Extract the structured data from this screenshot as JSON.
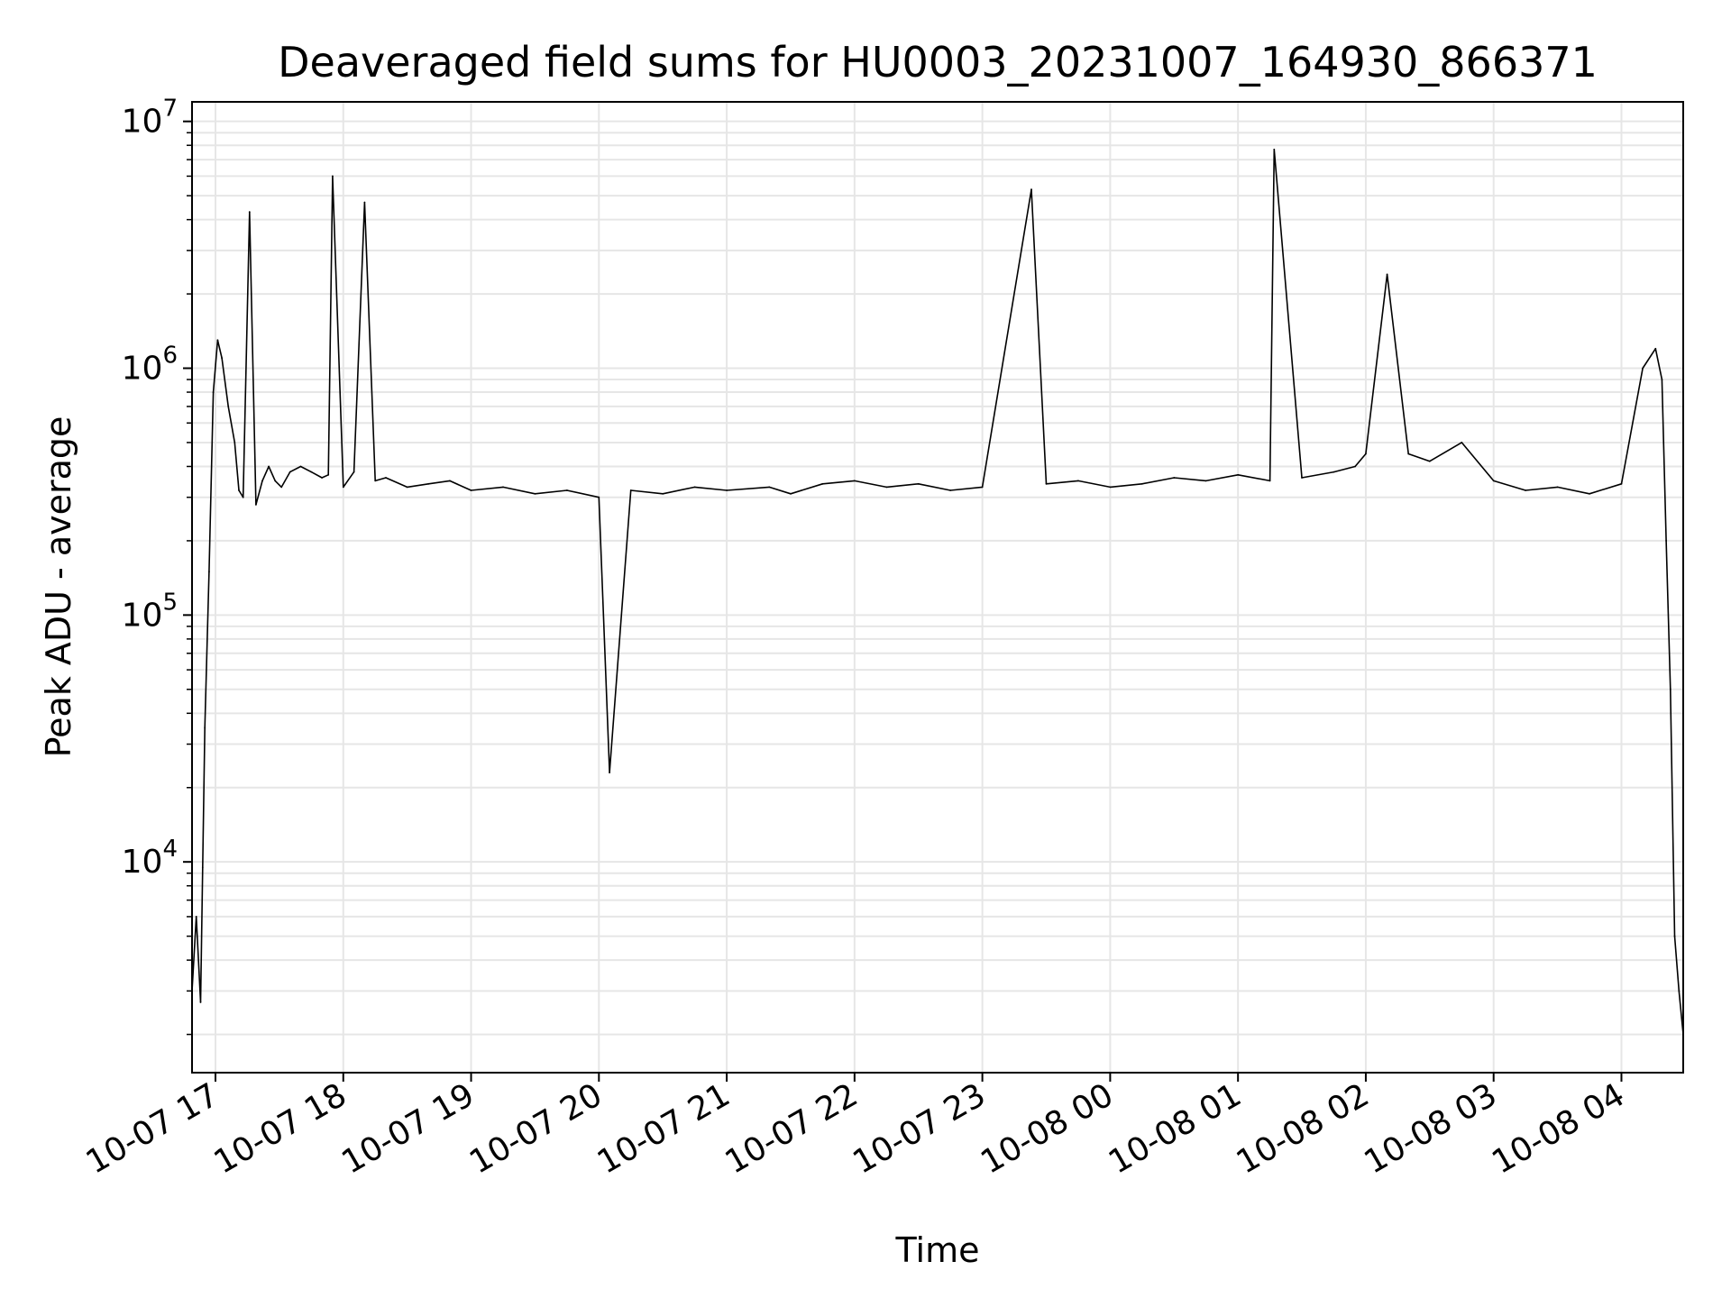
{
  "chart_data": {
    "type": "line",
    "title": "Deaveraged field sums for HU0003_20231007_164930_866371",
    "xlabel": "Time",
    "ylabel": "Peak ADU - average",
    "yscale": "log",
    "ylim": [
      1400,
      12000000
    ],
    "xlim": [
      "2023-10-07 16:49",
      "2023-10-08 04:29"
    ],
    "grid": "on (major and minor)",
    "line_color": "#000000",
    "x_ticks": [
      {
        "label": "10-07 17",
        "value": "2023-10-07 17:00"
      },
      {
        "label": "10-07 18",
        "value": "2023-10-07 18:00"
      },
      {
        "label": "10-07 19",
        "value": "2023-10-07 19:00"
      },
      {
        "label": "10-07 20",
        "value": "2023-10-07 20:00"
      },
      {
        "label": "10-07 21",
        "value": "2023-10-07 21:00"
      },
      {
        "label": "10-07 22",
        "value": "2023-10-07 22:00"
      },
      {
        "label": "10-07 23",
        "value": "2023-10-07 23:00"
      },
      {
        "label": "10-08 00",
        "value": "2023-10-08 00:00"
      },
      {
        "label": "10-08 01",
        "value": "2023-10-08 01:00"
      },
      {
        "label": "10-08 02",
        "value": "2023-10-08 02:00"
      },
      {
        "label": "10-08 03",
        "value": "2023-10-08 03:00"
      },
      {
        "label": "10-08 04",
        "value": "2023-10-08 04:00"
      }
    ],
    "y_ticks": [
      {
        "base": "10",
        "exp": "4",
        "value": 10000
      },
      {
        "base": "10",
        "exp": "5",
        "value": 100000
      },
      {
        "base": "10",
        "exp": "6",
        "value": 1000000
      },
      {
        "base": "10",
        "exp": "7",
        "value": 10000000
      }
    ],
    "series": [
      {
        "x": [
          "2023-10-07 16:49",
          "2023-10-07 16:51",
          "2023-10-07 16:53",
          "2023-10-07 16:54",
          "2023-10-07 16:55",
          "2023-10-07 16:57",
          "2023-10-07 16:59",
          "2023-10-07 17:01",
          "2023-10-07 17:03",
          "2023-10-07 17:06",
          "2023-10-07 17:09",
          "2023-10-07 17:11",
          "2023-10-07 17:13",
          "2023-10-07 17:16",
          "2023-10-07 17:19",
          "2023-10-07 17:22",
          "2023-10-07 17:25",
          "2023-10-07 17:28",
          "2023-10-07 17:31",
          "2023-10-07 17:35",
          "2023-10-07 17:40",
          "2023-10-07 17:45",
          "2023-10-07 17:50",
          "2023-10-07 17:53",
          "2023-10-07 17:55",
          "2023-10-07 18:00",
          "2023-10-07 18:05",
          "2023-10-07 18:10",
          "2023-10-07 18:15",
          "2023-10-07 18:20",
          "2023-10-07 18:30",
          "2023-10-07 18:40",
          "2023-10-07 18:50",
          "2023-10-07 19:00",
          "2023-10-07 19:15",
          "2023-10-07 19:30",
          "2023-10-07 19:45",
          "2023-10-07 20:00",
          "2023-10-07 20:05",
          "2023-10-07 20:15",
          "2023-10-07 20:30",
          "2023-10-07 20:45",
          "2023-10-07 21:00",
          "2023-10-07 21:20",
          "2023-10-07 21:30",
          "2023-10-07 21:45",
          "2023-10-07 22:00",
          "2023-10-07 22:15",
          "2023-10-07 22:30",
          "2023-10-07 22:45",
          "2023-10-07 23:00",
          "2023-10-07 23:23",
          "2023-10-07 23:30",
          "2023-10-07 23:45",
          "2023-10-08 00:00",
          "2023-10-08 00:15",
          "2023-10-08 00:30",
          "2023-10-08 00:45",
          "2023-10-08 01:00",
          "2023-10-08 01:15",
          "2023-10-08 01:17",
          "2023-10-08 01:30",
          "2023-10-08 01:45",
          "2023-10-08 01:55",
          "2023-10-08 02:00",
          "2023-10-08 02:10",
          "2023-10-08 02:20",
          "2023-10-08 02:30",
          "2023-10-08 02:45",
          "2023-10-08 03:00",
          "2023-10-08 03:15",
          "2023-10-08 03:30",
          "2023-10-08 03:45",
          "2023-10-08 04:00",
          "2023-10-08 04:10",
          "2023-10-08 04:16",
          "2023-10-08 04:19",
          "2023-10-08 04:21",
          "2023-10-08 04:23",
          "2023-10-08 04:25",
          "2023-10-08 04:27",
          "2023-10-08 04:29"
        ],
        "y": [
          3000,
          6000,
          2700,
          9500,
          35000,
          150000,
          800000,
          1300000,
          1100000,
          700000,
          500000,
          320000,
          300000,
          4300000,
          280000,
          350000,
          400000,
          350000,
          330000,
          380000,
          400000,
          380000,
          360000,
          370000,
          6000000,
          330000,
          380000,
          4700000,
          350000,
          360000,
          330000,
          340000,
          350000,
          320000,
          330000,
          310000,
          320000,
          300000,
          23000,
          320000,
          310000,
          330000,
          320000,
          330000,
          310000,
          340000,
          350000,
          330000,
          340000,
          320000,
          330000,
          5300000,
          340000,
          350000,
          330000,
          340000,
          360000,
          350000,
          370000,
          350000,
          7700000,
          360000,
          380000,
          400000,
          450000,
          2400000,
          450000,
          420000,
          500000,
          350000,
          320000,
          330000,
          310000,
          340000,
          1000000,
          1200000,
          900000,
          200000,
          50000,
          5000,
          3000,
          2000
        ]
      }
    ]
  }
}
